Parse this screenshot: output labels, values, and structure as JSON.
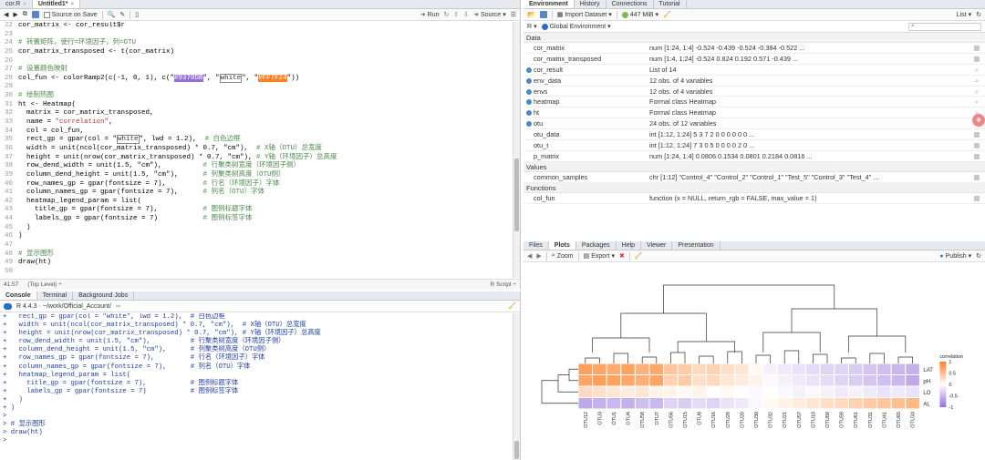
{
  "source": {
    "tabs": [
      {
        "label": "cor.R",
        "active": false
      },
      {
        "label": "Untitled1*",
        "active": true
      }
    ],
    "toolbar": {
      "source_on_save": "Source on Save",
      "run": "Run",
      "source": "Source"
    },
    "lines": [
      {
        "n": "22",
        "segs": [
          {
            "t": "cor_matrix <- cor_result$r",
            "c": "ct"
          }
        ]
      },
      {
        "n": "23",
        "segs": [
          {
            "t": "",
            "c": "ct"
          }
        ]
      },
      {
        "n": "24",
        "segs": [
          {
            "t": "# 转置矩阵，使行=环境因子，列=OTU",
            "c": "cm"
          }
        ]
      },
      {
        "n": "25",
        "segs": [
          {
            "t": "cor_matrix_transposed <- t(cor_matrix)",
            "c": "ct"
          }
        ]
      },
      {
        "n": "26",
        "segs": [
          {
            "t": "",
            "c": "ct"
          }
        ]
      },
      {
        "n": "27",
        "segs": [
          {
            "t": "# 设置颜色映射",
            "c": "cm"
          }
        ]
      },
      {
        "n": "28",
        "segs": [
          {
            "t": "col_fun <- colorRamp2(c(-1, 0, 1), c(\"",
            "c": "ct"
          },
          {
            "t": "#9370DB",
            "c": "hl-purple"
          },
          {
            "t": "\", \"",
            "c": "ct"
          },
          {
            "t": "white",
            "c": "hl-white"
          },
          {
            "t": "\", \"",
            "c": "ct"
          },
          {
            "t": "#FF7F24",
            "c": "hl-orange"
          },
          {
            "t": "\"))",
            "c": "ct"
          }
        ]
      },
      {
        "n": "29",
        "segs": [
          {
            "t": "",
            "c": "ct"
          }
        ]
      },
      {
        "n": "30",
        "segs": [
          {
            "t": "# 绘制热图",
            "c": "cm"
          }
        ]
      },
      {
        "n": "31",
        "segs": [
          {
            "t": "ht <- Heatmap(",
            "c": "ct"
          }
        ]
      },
      {
        "n": "32",
        "segs": [
          {
            "t": "  matrix = cor_matrix_transposed,",
            "c": "ct"
          }
        ]
      },
      {
        "n": "33",
        "segs": [
          {
            "t": "  name = ",
            "c": "ct"
          },
          {
            "t": "\"correlation\"",
            "c": "st"
          },
          {
            "t": ",",
            "c": "ct"
          }
        ]
      },
      {
        "n": "34",
        "segs": [
          {
            "t": "  col = col_fun,",
            "c": "ct"
          }
        ]
      },
      {
        "n": "35",
        "segs": [
          {
            "t": "  rect_gp = gpar(col = \"",
            "c": "ct"
          },
          {
            "t": "white",
            "c": "hl-white"
          },
          {
            "t": "\", lwd = 1.2),  ",
            "c": "ct"
          },
          {
            "t": "# 白色边框",
            "c": "cm"
          }
        ]
      },
      {
        "n": "36",
        "segs": [
          {
            "t": "  width = unit(ncol(cor_matrix_transposed) * 0.7, \"cm\"),  ",
            "c": "ct"
          },
          {
            "t": "# X轴（OTU）总宽度",
            "c": "cm"
          }
        ]
      },
      {
        "n": "37",
        "segs": [
          {
            "t": "  height = unit(nrow(cor_matrix_transposed) * 0.7, \"cm\"), ",
            "c": "ct"
          },
          {
            "t": "# Y轴（环境因子）总高度",
            "c": "cm"
          }
        ]
      },
      {
        "n": "38",
        "segs": [
          {
            "t": "  row_dend_width = unit(1.5, \"cm\"),          ",
            "c": "ct"
          },
          {
            "t": "# 行聚类树宽度（环境因子侧）",
            "c": "cm"
          }
        ]
      },
      {
        "n": "39",
        "segs": [
          {
            "t": "  column_dend_height = unit(1.5, \"cm\"),      ",
            "c": "ct"
          },
          {
            "t": "# 列聚类树高度（OTU侧）",
            "c": "cm"
          }
        ]
      },
      {
        "n": "40",
        "segs": [
          {
            "t": "  row_names_gp = gpar(fontsize = 7),         ",
            "c": "ct"
          },
          {
            "t": "# 行名（环境因子）字体",
            "c": "cm"
          }
        ]
      },
      {
        "n": "41",
        "segs": [
          {
            "t": "  column_names_gp = gpar(fontsize = 7),      ",
            "c": "ct"
          },
          {
            "t": "# 列名（OTU）字体",
            "c": "cm"
          }
        ]
      },
      {
        "n": "42",
        "segs": [
          {
            "t": "  heatmap_legend_param = list(",
            "c": "ct"
          }
        ]
      },
      {
        "n": "43",
        "segs": [
          {
            "t": "    title_gp = gpar(fontsize = 7),           ",
            "c": "ct"
          },
          {
            "t": "# 图例标题字体",
            "c": "cm"
          }
        ]
      },
      {
        "n": "44",
        "segs": [
          {
            "t": "    labels_gp = gpar(fontsize = 7)           ",
            "c": "ct"
          },
          {
            "t": "# 图例标签字体",
            "c": "cm"
          }
        ]
      },
      {
        "n": "45",
        "segs": [
          {
            "t": "  )",
            "c": "ct"
          }
        ]
      },
      {
        "n": "46",
        "segs": [
          {
            "t": ")",
            "c": "ct"
          }
        ]
      },
      {
        "n": "47",
        "segs": [
          {
            "t": "",
            "c": "ct"
          }
        ]
      },
      {
        "n": "48",
        "segs": [
          {
            "t": "# 显示图形",
            "c": "cm"
          }
        ]
      },
      {
        "n": "49",
        "segs": [
          {
            "t": "draw(ht)",
            "c": "ct"
          }
        ]
      },
      {
        "n": "50",
        "segs": [
          {
            "t": "",
            "c": "ct"
          }
        ]
      }
    ],
    "status": {
      "position": "41:57",
      "scope": "(Top Level) ÷",
      "type": "R Script ÷"
    }
  },
  "console": {
    "tabs": [
      {
        "label": "Console",
        "active": true
      },
      {
        "label": "Terminal",
        "active": false
      },
      {
        "label": "Background Jobs",
        "active": false
      }
    ],
    "header": "R 4.4.3 · ~/work/Official_Account/",
    "lines": [
      "+   rect_gp = gpar(col = \"white\", lwd = 1.2),  # 白色边框",
      "+   width = unit(ncol(cor_matrix_transposed) * 0.7, \"cm\"),  # X轴（OTU）总宽度",
      "+   height = unit(nrow(cor_matrix_transposed) * 0.7, \"cm\"), # Y轴（环境因子）总高度",
      "+   row_dend_width = unit(1.5, \"cm\"),          # 行聚类树宽度（环境因子侧）",
      "+   column_dend_height = unit(1.5, \"cm\"),      # 列聚类树高度（OTU侧）",
      "+   row_names_gp = gpar(fontsize = 7),         # 行名（环境因子）字体",
      "+   column_names_gp = gpar(fontsize = 7),      # 列名（OTU）字体",
      "+   heatmap_legend_param = list(",
      "+     title_gp = gpar(fontsize = 7),           # 图例标题字体",
      "+     labels_gp = gpar(fontsize = 7)           # 图例标签字体",
      "+   )",
      "+ )",
      ">",
      "> # 显示图形",
      "> draw(ht)",
      ">"
    ]
  },
  "environment": {
    "tabs": [
      {
        "label": "Environment",
        "active": true
      },
      {
        "label": "History",
        "active": false
      },
      {
        "label": "Connections",
        "active": false
      },
      {
        "label": "Tutorial",
        "active": false
      }
    ],
    "toolbar": {
      "import": "Import Dataset",
      "memory": "447 MiB",
      "view": "List"
    },
    "lang": "R",
    "scope": "Global Environment",
    "sections": [
      {
        "title": "Data",
        "rows": [
          {
            "name": "cor_matrix",
            "value": "num [1:24, 1:4] -0.524 -0.439 -0.524 -0.384 -0.522 ...",
            "dot": false
          },
          {
            "name": "cor_matrix_transposed",
            "value": "num [1:4, 1:24] -0.524 0.824 0.192 0.571 -0.439 ...",
            "dot": false
          },
          {
            "name": "cor_result",
            "value": "List of  14",
            "dot": true
          },
          {
            "name": "env_data",
            "value": "12 obs. of 4 variables",
            "dot": true
          },
          {
            "name": "envs",
            "value": "12 obs. of 4 variables",
            "dot": true
          },
          {
            "name": "heatmap",
            "value": "Formal class  Heatmap",
            "dot": true
          },
          {
            "name": "ht",
            "value": "Formal class  Heatmap",
            "dot": true
          },
          {
            "name": "otu",
            "value": "24 obs. of 12 variables",
            "dot": true
          },
          {
            "name": "otu_data",
            "value": "int [1:12, 1:24] 5 3 7 2 0 0 0 0 0 0 ...",
            "dot": false
          },
          {
            "name": "otu_t",
            "value": "int [1:12, 1:24] 7 3 0 5 0 0 0 0 2 0 ...",
            "dot": false
          },
          {
            "name": "p_matrix",
            "value": "num [1:24, 1:4] 0.0806 0.1534 0.0801 0.2184 0.0816 ...",
            "dot": false
          }
        ]
      },
      {
        "title": "Values",
        "rows": [
          {
            "name": "common_samples",
            "value": "chr [1:12] \"Control_4\" \"Control_2\" \"Control_1\" \"Test_5\" \"Control_3\" \"Test_4\" ...",
            "dot": false
          }
        ]
      },
      {
        "title": "Functions",
        "rows": [
          {
            "name": "col_fun",
            "value": "function (x = NULL, return_rgb = FALSE, max_value = 1)",
            "dot": false
          }
        ]
      }
    ]
  },
  "plots": {
    "tabs": [
      {
        "label": "Files",
        "active": false
      },
      {
        "label": "Plots",
        "active": true
      },
      {
        "label": "Packages",
        "active": false
      },
      {
        "label": "Help",
        "active": false
      },
      {
        "label": "Viewer",
        "active": false
      },
      {
        "label": "Presentation",
        "active": false
      }
    ],
    "toolbar": {
      "zoom": "Zoom",
      "export": "Export",
      "publish": "Publish"
    },
    "heatmap": {
      "rows": [
        "LAT",
        "pH",
        "LO",
        "AL"
      ],
      "cols": [
        "OTU12",
        "OTU3",
        "OTU1",
        "OTU4",
        "OTU58",
        "OTU7",
        "OTU56",
        "OTU15",
        "OTU8",
        "OTU16",
        "OTU29",
        "OTU20",
        "OTU30",
        "OTU32",
        "OTU21",
        "OTU57",
        "OTU10",
        "OTU60",
        "OTU59",
        "OTU61",
        "OTU31",
        "OTU41",
        "OTU65",
        "OTU33"
      ],
      "values": [
        [
          0.75,
          0.7,
          0.65,
          0.72,
          0.6,
          0.68,
          0.45,
          0.4,
          0.3,
          0.35,
          0.25,
          0.2,
          0.05,
          -0.1,
          -0.15,
          -0.2,
          -0.25,
          -0.3,
          -0.3,
          -0.35,
          -0.4,
          -0.45,
          -0.5,
          -0.55
        ],
        [
          0.7,
          0.75,
          0.72,
          0.68,
          0.62,
          0.7,
          0.35,
          0.4,
          0.25,
          0.3,
          0.2,
          0.15,
          0.1,
          -0.05,
          -0.1,
          -0.15,
          -0.2,
          -0.25,
          -0.3,
          -0.35,
          -0.4,
          -0.45,
          -0.5,
          -0.6
        ],
        [
          0.3,
          0.25,
          0.2,
          0.15,
          0.2,
          0.1,
          0.1,
          0.05,
          0.1,
          0.0,
          0.05,
          0.0,
          -0.05,
          0.0,
          -0.05,
          -0.1,
          -0.05,
          -0.1,
          -0.15,
          -0.1,
          -0.15,
          -0.2,
          -0.15,
          -0.2
        ],
        [
          -0.6,
          -0.55,
          -0.5,
          -0.55,
          -0.45,
          -0.5,
          -0.3,
          -0.35,
          -0.25,
          -0.3,
          -0.2,
          -0.15,
          -0.05,
          0.05,
          0.1,
          0.15,
          0.2,
          0.25,
          0.3,
          0.35,
          0.4,
          0.45,
          0.5,
          0.55
        ]
      ],
      "legend_title": "correlation",
      "legend_ticks": [
        "1",
        "0.5",
        "0",
        "-0.5",
        "-1"
      ],
      "colors": {
        "low": "#9370DB",
        "mid": "#ffffff",
        "high": "#FF7F24"
      }
    }
  }
}
